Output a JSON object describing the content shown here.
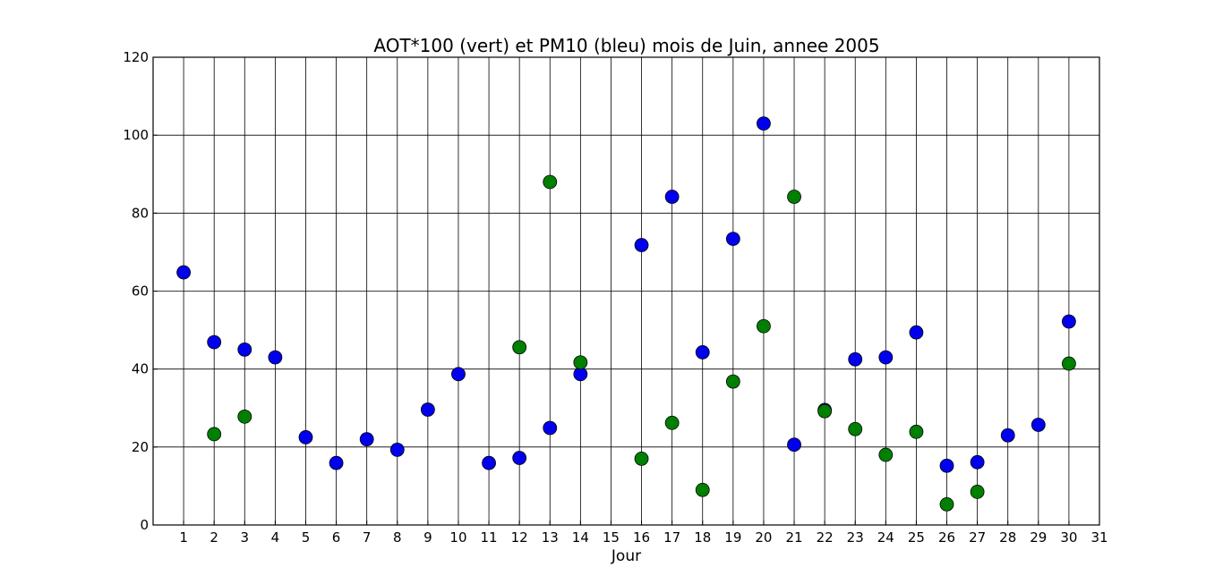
{
  "chart_data": {
    "type": "scatter",
    "title": "AOT*100 (vert) et PM10 (bleu) mois de Juin, annee 2005",
    "xlabel": "Jour",
    "ylabel": "",
    "xlim": [
      0,
      31
    ],
    "ylim": [
      0,
      120
    ],
    "xticks": [
      1,
      2,
      3,
      4,
      5,
      6,
      7,
      8,
      9,
      10,
      11,
      12,
      13,
      14,
      15,
      16,
      17,
      18,
      19,
      20,
      21,
      22,
      23,
      24,
      25,
      26,
      27,
      28,
      29,
      30,
      31
    ],
    "yticks": [
      0,
      20,
      40,
      60,
      80,
      100,
      120
    ],
    "grid": true,
    "series": [
      {
        "name": "PM10 (bleu)",
        "color": "#0000ee",
        "x": [
          1,
          2,
          3,
          4,
          5,
          6,
          7,
          8,
          9,
          10,
          11,
          12,
          13,
          14,
          16,
          17,
          18,
          19,
          20,
          21,
          22,
          23,
          24,
          25,
          26,
          27,
          28,
          29,
          30
        ],
        "y": [
          64.8,
          46.9,
          45.0,
          43.0,
          22.5,
          15.9,
          22.0,
          19.3,
          29.6,
          38.7,
          15.9,
          17.2,
          24.9,
          38.7,
          71.8,
          84.2,
          44.3,
          73.4,
          103.0,
          20.6,
          29.5,
          42.5,
          43.0,
          49.4,
          15.2,
          16.1,
          23.0,
          25.7,
          52.2
        ]
      },
      {
        "name": "AOT*100 (vert)",
        "color": "#008000",
        "x": [
          2,
          3,
          12,
          13,
          14,
          16,
          17,
          18,
          19,
          20,
          21,
          22,
          23,
          24,
          25,
          26,
          27,
          30
        ],
        "y": [
          23.3,
          27.8,
          45.6,
          88.0,
          41.7,
          17.0,
          26.2,
          9.0,
          36.8,
          51.0,
          84.2,
          29.2,
          24.6,
          18.0,
          23.9,
          5.3,
          8.5,
          41.4
        ]
      }
    ]
  }
}
